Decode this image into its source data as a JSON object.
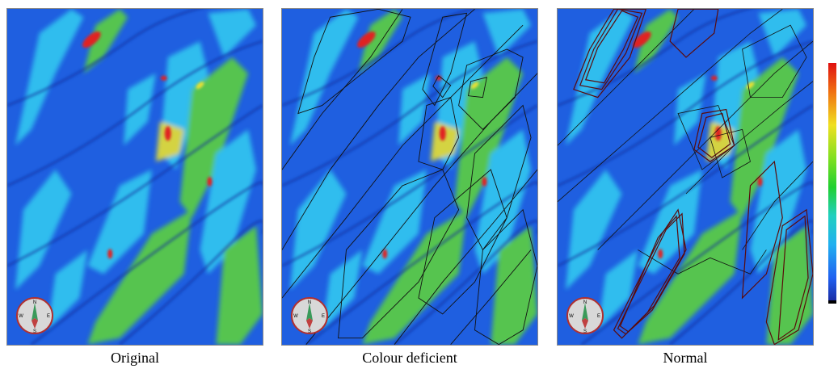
{
  "panels": [
    {
      "id": "original",
      "caption": "Original"
    },
    {
      "id": "colour-deficient",
      "caption": "Colour deficient"
    },
    {
      "id": "normal",
      "caption": "Normal"
    }
  ],
  "compass": {
    "north": "N",
    "south": "S",
    "east": "E",
    "west": "W"
  },
  "colors": {
    "background_blue": "#1f5fe0",
    "streak_cyan": "#30c8f0",
    "streak_green": "#5cd040",
    "streak_yellow": "#e8e030",
    "hot_red": "#e02020",
    "line_black": "#111111",
    "line_darkred": "#5a0a0a"
  }
}
